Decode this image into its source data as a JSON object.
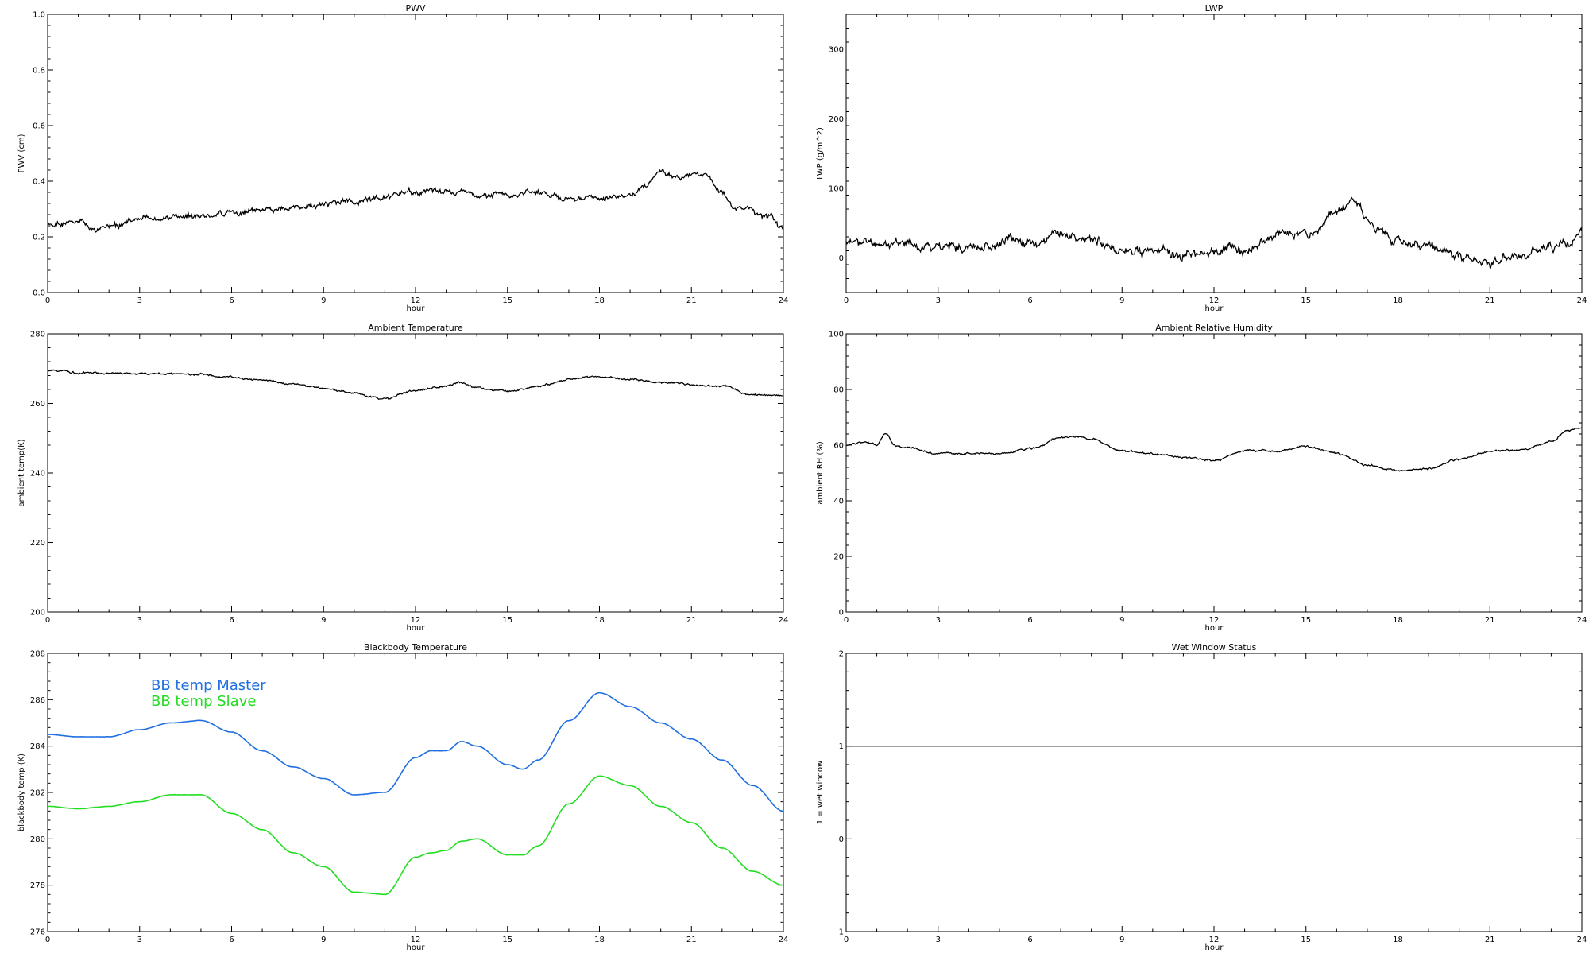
{
  "chart_data": [
    {
      "type": "line",
      "title": "PWV",
      "xlabel": "hour",
      "ylabel": "PWV (cm)",
      "xlim": [
        0,
        24
      ],
      "ylim": [
        0,
        1.0
      ],
      "xticks": [
        0,
        3,
        6,
        9,
        12,
        15,
        18,
        21,
        24
      ],
      "yticks": [
        0.0,
        0.2,
        0.4,
        0.6,
        0.8,
        1.0
      ],
      "ytick_labels": [
        "0.0",
        "0.2",
        "0.4",
        "0.6",
        "0.8",
        "1.0"
      ],
      "series": [
        {
          "color": "#000000",
          "x": [
            0,
            1,
            1.5,
            2,
            3,
            4,
            5,
            6,
            7,
            8,
            9,
            10,
            11,
            12,
            12.5,
            13,
            14,
            15,
            16,
            17,
            18,
            19,
            19.5,
            20,
            20.5,
            21,
            21.5,
            22,
            22.5,
            23,
            23.5,
            24
          ],
          "y": [
            0.24,
            0.245,
            0.23,
            0.235,
            0.265,
            0.27,
            0.28,
            0.28,
            0.29,
            0.3,
            0.315,
            0.33,
            0.34,
            0.355,
            0.37,
            0.36,
            0.355,
            0.35,
            0.355,
            0.34,
            0.345,
            0.35,
            0.38,
            0.43,
            0.425,
            0.43,
            0.42,
            0.35,
            0.29,
            0.285,
            0.27,
            0.225
          ]
        }
      ]
    },
    {
      "type": "line",
      "title": "LWP",
      "xlabel": "hour",
      "ylabel": "LWP (g/m^2)",
      "xlim": [
        0,
        24
      ],
      "ylim": [
        -50,
        350
      ],
      "xticks": [
        0,
        3,
        6,
        9,
        12,
        15,
        18,
        21,
        24
      ],
      "yticks": [
        0,
        100,
        200,
        300
      ],
      "ytick_labels": [
        "0",
        "100",
        "200",
        "300"
      ],
      "series": [
        {
          "color": "#000000",
          "x": [
            0,
            1,
            2,
            3,
            4,
            5,
            5.5,
            6,
            7,
            8,
            8.5,
            9,
            10,
            11,
            12,
            13,
            14,
            15,
            15.5,
            16,
            16.5,
            17,
            17.5,
            18,
            19,
            20,
            21,
            22,
            23,
            23.5,
            24
          ],
          "y": [
            22,
            22,
            20,
            18,
            16,
            18,
            25,
            22,
            32,
            28,
            22,
            8,
            8,
            6,
            10,
            15,
            30,
            38,
            45,
            65,
            80,
            60,
            40,
            25,
            12,
            0,
            -3,
            0,
            20,
            22,
            35
          ]
        }
      ]
    },
    {
      "type": "line",
      "title": "Ambient Temperature",
      "xlabel": "hour",
      "ylabel": "ambient temp(K)",
      "xlim": [
        0,
        24
      ],
      "ylim": [
        200,
        280
      ],
      "xticks": [
        0,
        3,
        6,
        9,
        12,
        15,
        18,
        21,
        24
      ],
      "yticks": [
        200,
        220,
        240,
        260,
        280
      ],
      "ytick_labels": [
        "200",
        "220",
        "240",
        "260",
        "280"
      ],
      "series": [
        {
          "color": "#000000",
          "x": [
            0,
            1,
            2,
            3,
            4,
            5,
            6,
            7,
            8,
            9,
            10,
            11,
            12,
            13,
            13.5,
            14,
            15,
            16,
            17,
            18,
            19,
            20,
            21,
            22,
            23,
            24
          ],
          "y": [
            269.5,
            269,
            268.8,
            268.6,
            268.5,
            268.3,
            267.5,
            266.5,
            265.5,
            264.5,
            263,
            261.5,
            263.5,
            265,
            265.8,
            264.5,
            263.5,
            265,
            267,
            267.5,
            267,
            266,
            265.5,
            265,
            262.5,
            262
          ]
        }
      ]
    },
    {
      "type": "line",
      "title": "Ambient Relative Humidity",
      "xlabel": "hour",
      "ylabel": "ambient RH (%)",
      "xlim": [
        0,
        24
      ],
      "ylim": [
        0,
        100
      ],
      "xticks": [
        0,
        3,
        6,
        9,
        12,
        15,
        18,
        21,
        24
      ],
      "yticks": [
        0,
        20,
        40,
        60,
        80,
        100
      ],
      "ytick_labels": [
        "0",
        "20",
        "40",
        "60",
        "80",
        "100"
      ],
      "series": [
        {
          "color": "#000000",
          "x": [
            0,
            0.5,
            1,
            1.3,
            1.6,
            2,
            3,
            4,
            5,
            6,
            7,
            7.5,
            8,
            9,
            10,
            11,
            12,
            13,
            14,
            15,
            16,
            17,
            18,
            19,
            20,
            21,
            22,
            23,
            23.5,
            24
          ],
          "y": [
            60,
            61,
            60,
            64,
            60,
            59,
            57,
            57,
            57,
            58.5,
            62.5,
            63,
            62,
            58,
            57,
            55.5,
            54.5,
            58,
            58,
            59.5,
            57,
            53,
            51,
            51.5,
            55,
            58,
            58,
            61,
            65,
            66
          ]
        }
      ]
    },
    {
      "type": "line",
      "title": "Blackbody Temperature",
      "xlabel": "hour",
      "ylabel": "blackbody temp (K)",
      "xlim": [
        0,
        24
      ],
      "ylim": [
        276,
        288
      ],
      "xticks": [
        0,
        3,
        6,
        9,
        12,
        15,
        18,
        21,
        24
      ],
      "yticks": [
        276,
        278,
        280,
        282,
        284,
        286,
        288
      ],
      "ytick_labels": [
        "276",
        "278",
        "280",
        "282",
        "284",
        "286",
        "288"
      ],
      "legend": "top-left",
      "series": [
        {
          "name": "BB temp Master",
          "color": "#1f6fe0",
          "x": [
            0,
            1,
            2,
            3,
            4,
            5,
            6,
            7,
            8,
            9,
            10,
            11,
            12,
            12.5,
            13,
            13.5,
            14,
            15,
            15.5,
            16,
            17,
            18,
            19,
            20,
            21,
            22,
            23,
            24
          ],
          "y": [
            284.5,
            284.4,
            284.4,
            284.7,
            285.0,
            285.1,
            284.6,
            283.8,
            283.1,
            282.6,
            281.9,
            282.0,
            283.5,
            283.8,
            283.8,
            284.2,
            284.0,
            283.2,
            283.0,
            283.4,
            285.1,
            286.3,
            285.7,
            285.0,
            284.3,
            283.4,
            282.3,
            281.2
          ]
        },
        {
          "name": "BB temp Slave",
          "color": "#22dd22",
          "x": [
            0,
            1,
            2,
            3,
            4,
            5,
            6,
            7,
            8,
            9,
            10,
            11,
            12,
            12.5,
            13,
            13.5,
            14,
            15,
            15.5,
            16,
            17,
            18,
            19,
            20,
            21,
            22,
            23,
            24
          ],
          "y": [
            281.4,
            281.3,
            281.4,
            281.6,
            281.9,
            281.9,
            281.1,
            280.4,
            279.4,
            278.8,
            277.7,
            277.6,
            279.2,
            279.4,
            279.5,
            279.9,
            280.0,
            279.3,
            279.3,
            279.7,
            281.5,
            282.7,
            282.3,
            281.4,
            280.7,
            279.6,
            278.6,
            278.0
          ]
        }
      ]
    },
    {
      "type": "line",
      "title": "Wet Window Status",
      "xlabel": "hour",
      "ylabel": "1 = wet window",
      "xlim": [
        0,
        24
      ],
      "ylim": [
        -1,
        2
      ],
      "xticks": [
        0,
        3,
        6,
        9,
        12,
        15,
        18,
        21,
        24
      ],
      "yticks": [
        -1,
        0,
        1,
        2
      ],
      "ytick_labels": [
        "-1",
        "0",
        "1",
        "2"
      ],
      "series": [
        {
          "color": "#000000",
          "x": [
            0,
            24
          ],
          "y": [
            1,
            1
          ]
        }
      ]
    }
  ]
}
